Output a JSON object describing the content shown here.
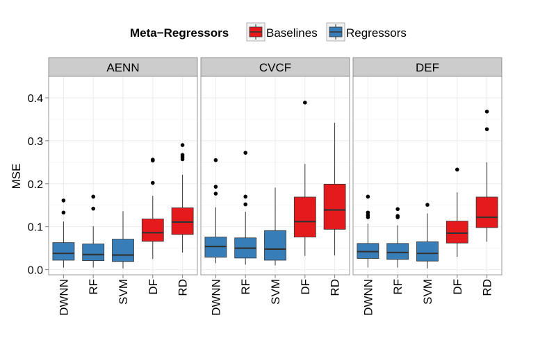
{
  "legend": {
    "title": "Meta−Regressors",
    "entries": [
      {
        "label": "Baselines",
        "color": "#e41a1c"
      },
      {
        "label": "Regressors",
        "color": "#377eb8"
      }
    ]
  },
  "colors": {
    "Baselines": "#e41a1c",
    "Regressors": "#377eb8",
    "strip": "#cccccc",
    "panel_border": "#7f7f7f",
    "grid": "#ebebeb"
  },
  "chart_data": {
    "type": "boxplot",
    "ylabel": "MSE",
    "ylim": [
      -0.012,
      0.45
    ],
    "yticks": [
      0.0,
      0.1,
      0.2,
      0.3,
      0.4
    ],
    "ytick_labels": [
      "0.0",
      "0.1",
      "0.2",
      "0.3",
      "0.4"
    ],
    "grid": true,
    "legend_position": "top",
    "categories": [
      "DWNN",
      "RF",
      "SVM",
      "DF",
      "RD"
    ],
    "panels": [
      {
        "name": "AENN",
        "boxes": [
          {
            "category": "DWNN",
            "group": "Regressors",
            "whisker_low": 0.005,
            "q1": 0.022,
            "median": 0.038,
            "q3": 0.063,
            "whisker_high": 0.112,
            "outliers": [
              0.133,
              0.161
            ]
          },
          {
            "category": "RF",
            "group": "Regressors",
            "whisker_low": 0.005,
            "q1": 0.021,
            "median": 0.035,
            "q3": 0.06,
            "whisker_high": 0.101,
            "outliers": [
              0.142,
              0.17
            ]
          },
          {
            "category": "SVM",
            "group": "Regressors",
            "whisker_low": 0.003,
            "q1": 0.019,
            "median": 0.034,
            "q3": 0.071,
            "whisker_high": 0.136,
            "outliers": []
          },
          {
            "category": "DF",
            "group": "Baselines",
            "whisker_low": 0.025,
            "q1": 0.066,
            "median": 0.086,
            "q3": 0.118,
            "whisker_high": 0.172,
            "outliers": [
              0.202,
              0.254,
              0.256
            ]
          },
          {
            "category": "RD",
            "group": "Baselines",
            "whisker_low": 0.04,
            "q1": 0.082,
            "median": 0.111,
            "q3": 0.144,
            "whisker_high": 0.221,
            "outliers": [
              0.257,
              0.262,
              0.267,
              0.29
            ]
          }
        ]
      },
      {
        "name": "CVCF",
        "boxes": [
          {
            "category": "DWNN",
            "group": "Regressors",
            "whisker_low": 0.015,
            "q1": 0.029,
            "median": 0.054,
            "q3": 0.076,
            "whisker_high": 0.145,
            "outliers": [
              0.177,
              0.193,
              0.255
            ]
          },
          {
            "category": "RF",
            "group": "Regressors",
            "whisker_low": 0.012,
            "q1": 0.027,
            "median": 0.05,
            "q3": 0.074,
            "whisker_high": 0.135,
            "outliers": [
              0.152,
              0.17,
              0.272
            ]
          },
          {
            "category": "SVM",
            "group": "Regressors",
            "whisker_low": 0.01,
            "q1": 0.022,
            "median": 0.048,
            "q3": 0.091,
            "whisker_high": 0.191,
            "outliers": []
          },
          {
            "category": "DF",
            "group": "Baselines",
            "whisker_low": 0.032,
            "q1": 0.076,
            "median": 0.112,
            "q3": 0.169,
            "whisker_high": 0.246,
            "outliers": [
              0.389
            ]
          },
          {
            "category": "RD",
            "group": "Baselines",
            "whisker_low": 0.033,
            "q1": 0.094,
            "median": 0.139,
            "q3": 0.199,
            "whisker_high": 0.342,
            "outliers": []
          }
        ]
      },
      {
        "name": "DEF",
        "boxes": [
          {
            "category": "DWNN",
            "group": "Regressors",
            "whisker_low": 0.005,
            "q1": 0.026,
            "median": 0.042,
            "q3": 0.061,
            "whisker_high": 0.107,
            "outliers": [
              0.122,
              0.127,
              0.133,
              0.17
            ]
          },
          {
            "category": "RF",
            "group": "Regressors",
            "whisker_low": 0.005,
            "q1": 0.024,
            "median": 0.04,
            "q3": 0.061,
            "whisker_high": 0.103,
            "outliers": [
              0.122,
              0.125,
              0.141
            ]
          },
          {
            "category": "SVM",
            "group": "Regressors",
            "whisker_low": 0.003,
            "q1": 0.02,
            "median": 0.038,
            "q3": 0.065,
            "whisker_high": 0.131,
            "outliers": [
              0.151
            ]
          },
          {
            "category": "DF",
            "group": "Baselines",
            "whisker_low": 0.03,
            "q1": 0.062,
            "median": 0.085,
            "q3": 0.113,
            "whisker_high": 0.18,
            "outliers": [
              0.233
            ]
          },
          {
            "category": "RD",
            "group": "Baselines",
            "whisker_low": 0.065,
            "q1": 0.098,
            "median": 0.122,
            "q3": 0.169,
            "whisker_high": 0.25,
            "outliers": [
              0.327,
              0.368
            ]
          }
        ]
      }
    ]
  }
}
